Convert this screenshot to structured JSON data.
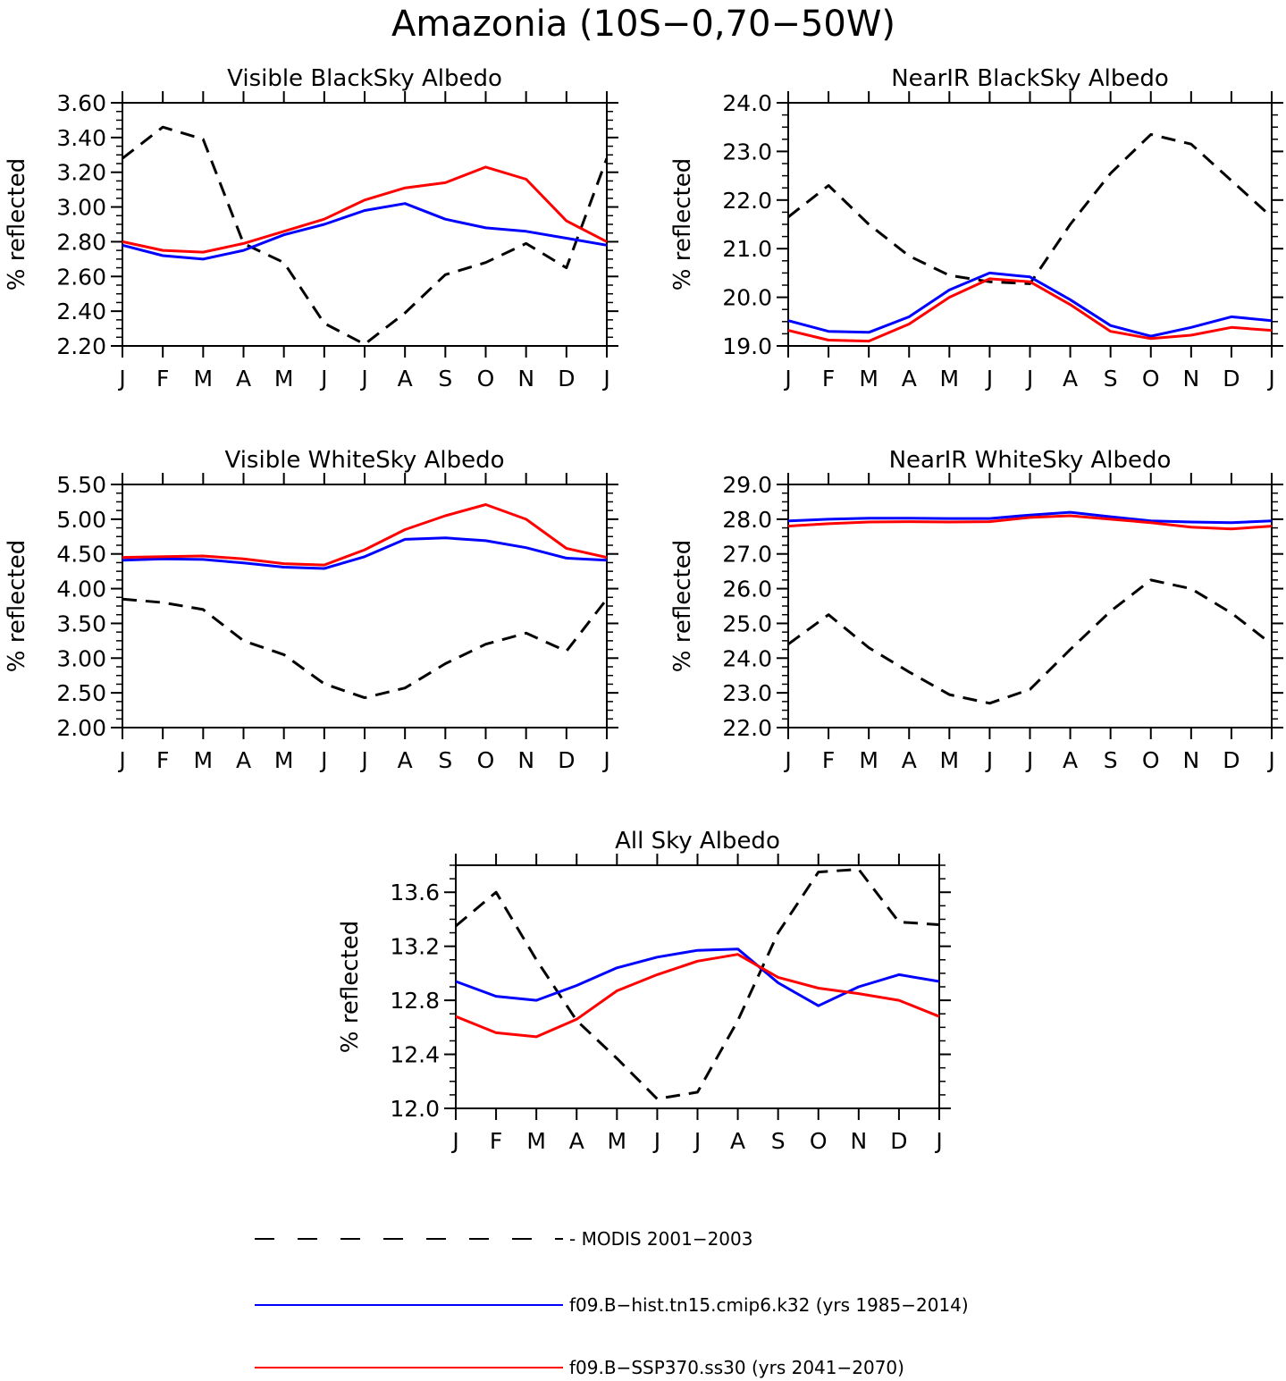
{
  "figure": {
    "title": "Amazonia (10S−0,70−50W)"
  },
  "legend": [
    {
      "label": "MODIS 2001−2003",
      "color": "#000000",
      "dashed": true
    },
    {
      "label": "f09.B−hist.tn15.cmip6.k32 (yrs 1985−2014)",
      "color": "#0000ff",
      "dashed": false
    },
    {
      "label": "f09.B−SSP370.ss30 (yrs 2041−2070)",
      "color": "#ff0000",
      "dashed": false
    }
  ],
  "chart_data": [
    {
      "type": "line",
      "title": "Visible BlackSky Albedo",
      "ylabel": "% reflected",
      "x": [
        "J",
        "F",
        "M",
        "A",
        "M",
        "J",
        "J",
        "A",
        "S",
        "O",
        "N",
        "D",
        "J"
      ],
      "ylim": [
        2.2,
        3.6
      ],
      "yticks": [
        "2.20",
        "2.40",
        "2.60",
        "2.80",
        "3.00",
        "3.20",
        "3.40",
        "3.60"
      ],
      "series": [
        {
          "name": "MODIS 2001−2003",
          "color": "#000000",
          "dashed": true,
          "values": [
            3.28,
            3.46,
            3.39,
            2.79,
            2.68,
            2.33,
            2.21,
            2.39,
            2.61,
            2.68,
            2.79,
            2.65,
            3.28
          ]
        },
        {
          "name": "f09.B−hist.tn15.cmip6.k32 (yrs 1985−2014)",
          "color": "#0000ff",
          "dashed": false,
          "values": [
            2.78,
            2.72,
            2.7,
            2.75,
            2.84,
            2.9,
            2.98,
            3.02,
            2.93,
            2.88,
            2.86,
            2.82,
            2.78
          ]
        },
        {
          "name": "f09.B−SSP370.ss30 (yrs 2041−2070)",
          "color": "#ff0000",
          "dashed": false,
          "values": [
            2.8,
            2.75,
            2.74,
            2.79,
            2.86,
            2.93,
            3.04,
            3.11,
            3.14,
            3.23,
            3.16,
            2.92,
            2.8
          ]
        }
      ]
    },
    {
      "type": "line",
      "title": "NearIR BlackSky Albedo",
      "ylabel": "% reflected",
      "x": [
        "J",
        "F",
        "M",
        "A",
        "M",
        "J",
        "J",
        "A",
        "S",
        "O",
        "N",
        "D",
        "J"
      ],
      "ylim": [
        19.0,
        24.0
      ],
      "yticks": [
        "19.0",
        "20.0",
        "21.0",
        "22.0",
        "23.0",
        "24.0"
      ],
      "series": [
        {
          "name": "MODIS 2001−2003",
          "color": "#000000",
          "dashed": true,
          "values": [
            21.65,
            22.3,
            21.5,
            20.85,
            20.45,
            20.32,
            20.28,
            21.5,
            22.55,
            23.35,
            23.15,
            22.4,
            21.65
          ]
        },
        {
          "name": "f09.B−hist.tn15.cmip6.k32 (yrs 1985−2014)",
          "color": "#0000ff",
          "dashed": false,
          "values": [
            19.52,
            19.3,
            19.28,
            19.6,
            20.15,
            20.5,
            20.42,
            19.95,
            19.42,
            19.2,
            19.38,
            19.6,
            19.52
          ]
        },
        {
          "name": "f09.B−SSP370.ss30 (yrs 2041−2070)",
          "color": "#ff0000",
          "dashed": false,
          "values": [
            19.32,
            19.12,
            19.1,
            19.45,
            20.0,
            20.38,
            20.32,
            19.85,
            19.3,
            19.15,
            19.22,
            19.38,
            19.32
          ]
        }
      ]
    },
    {
      "type": "line",
      "title": "Visible WhiteSky Albedo",
      "ylabel": "% reflected",
      "x": [
        "J",
        "F",
        "M",
        "A",
        "M",
        "J",
        "J",
        "A",
        "S",
        "O",
        "N",
        "D",
        "J"
      ],
      "ylim": [
        2.0,
        5.5
      ],
      "yticks": [
        "2.00",
        "2.50",
        "3.00",
        "3.50",
        "4.00",
        "4.50",
        "5.00",
        "5.50"
      ],
      "series": [
        {
          "name": "MODIS 2001−2003",
          "color": "#000000",
          "dashed": true,
          "values": [
            3.85,
            3.8,
            3.7,
            3.25,
            3.05,
            2.63,
            2.43,
            2.57,
            2.92,
            3.2,
            3.36,
            3.1,
            3.85
          ]
        },
        {
          "name": "f09.B−hist.tn15.cmip6.k32 (yrs 1985−2014)",
          "color": "#0000ff",
          "dashed": false,
          "values": [
            4.41,
            4.43,
            4.42,
            4.37,
            4.31,
            4.29,
            4.46,
            4.71,
            4.73,
            4.69,
            4.59,
            4.44,
            4.41
          ]
        },
        {
          "name": "f09.B−SSP370.ss30 (yrs 2041−2070)",
          "color": "#ff0000",
          "dashed": false,
          "values": [
            4.45,
            4.46,
            4.47,
            4.43,
            4.36,
            4.34,
            4.56,
            4.85,
            5.05,
            5.21,
            5.0,
            4.58,
            4.45
          ]
        }
      ]
    },
    {
      "type": "line",
      "title": "NearIR WhiteSky Albedo",
      "ylabel": "% reflected",
      "x": [
        "J",
        "F",
        "M",
        "A",
        "M",
        "J",
        "J",
        "A",
        "S",
        "O",
        "N",
        "D",
        "J"
      ],
      "ylim": [
        22.0,
        29.0
      ],
      "yticks": [
        "22.0",
        "23.0",
        "24.0",
        "25.0",
        "26.0",
        "27.0",
        "28.0",
        "29.0"
      ],
      "series": [
        {
          "name": "MODIS 2001−2003",
          "color": "#000000",
          "dashed": true,
          "values": [
            24.4,
            25.25,
            24.3,
            23.6,
            22.95,
            22.7,
            23.1,
            24.25,
            25.35,
            26.25,
            26.0,
            25.3,
            24.4
          ]
        },
        {
          "name": "f09.B−hist.tn15.cmip6.k32 (yrs 1985−2014)",
          "color": "#0000ff",
          "dashed": false,
          "values": [
            27.95,
            28.0,
            28.03,
            28.03,
            28.02,
            28.02,
            28.12,
            28.2,
            28.07,
            27.95,
            27.92,
            27.9,
            27.95
          ]
        },
        {
          "name": "f09.B−SSP370.ss30 (yrs 2041−2070)",
          "color": "#ff0000",
          "dashed": false,
          "values": [
            27.8,
            27.87,
            27.92,
            27.93,
            27.92,
            27.93,
            28.05,
            28.1,
            28.0,
            27.9,
            27.77,
            27.72,
            27.8
          ]
        }
      ]
    },
    {
      "type": "line",
      "title": "All Sky Albedo",
      "ylabel": "% reflected",
      "x": [
        "J",
        "F",
        "M",
        "A",
        "M",
        "J",
        "J",
        "A",
        "S",
        "O",
        "N",
        "D",
        "J"
      ],
      "ylim": [
        12.0,
        13.8
      ],
      "yticks": [
        "12.0",
        "12.4",
        "12.8",
        "13.2",
        "13.6"
      ],
      "series": [
        {
          "name": "MODIS 2001−2003",
          "color": "#000000",
          "dashed": true,
          "values": [
            13.35,
            13.6,
            13.1,
            12.65,
            12.37,
            12.07,
            12.12,
            12.65,
            13.3,
            13.75,
            13.77,
            13.38,
            13.36
          ]
        },
        {
          "name": "f09.B−hist.tn15.cmip6.k32 (yrs 1985−2014)",
          "color": "#0000ff",
          "dashed": false,
          "values": [
            12.94,
            12.83,
            12.8,
            12.91,
            13.04,
            13.12,
            13.17,
            13.18,
            12.93,
            12.76,
            12.9,
            12.99,
            12.94
          ]
        },
        {
          "name": "f09.B−SSP370.ss30 (yrs 2041−2070)",
          "color": "#ff0000",
          "dashed": false,
          "values": [
            12.68,
            12.56,
            12.53,
            12.66,
            12.87,
            12.99,
            13.09,
            13.14,
            12.97,
            12.89,
            12.85,
            12.8,
            12.68
          ]
        }
      ]
    }
  ]
}
